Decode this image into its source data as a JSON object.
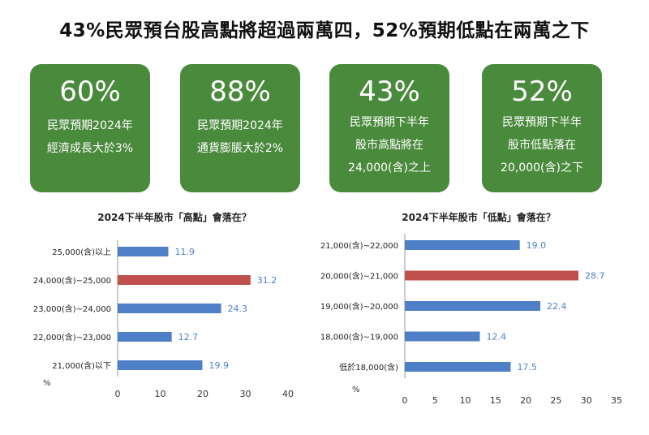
{
  "headline": "43%民眾預台股高點將超過兩萬四，52%預期低點在兩萬之下",
  "cards": [
    {
      "value": "60%",
      "lines": [
        "民眾預期2024年",
        "經濟成長大於3%"
      ]
    },
    {
      "value": "88%",
      "lines": [
        "民眾預期2024年",
        "通貨膨脹大於2%"
      ]
    },
    {
      "value": "43%",
      "lines": [
        "民眾預期下半年",
        "股市高點將在",
        "24,000(含)之上"
      ]
    },
    {
      "value": "52%",
      "lines": [
        "民眾預期下半年",
        "股市低點落在",
        "20,000(含)之下"
      ]
    }
  ],
  "colors": {
    "card": "#4a8a3c",
    "bar": "#4f7fc7",
    "highlight": "#c0504d",
    "label": "#4f7fc7"
  },
  "chart_data": [
    {
      "type": "bar",
      "orientation": "horizontal",
      "title": "2024下半年股市「高點」會落在？",
      "unit_label": "%",
      "categories": [
        "25,000(含)以上",
        "24,000(含)~25,000",
        "23,000(含)~24,000",
        "22,000(含)~23,000",
        "21,000(含)以下"
      ],
      "values": [
        11.9,
        31.2,
        24.3,
        12.7,
        19.9
      ],
      "value_labels": [
        "11.9",
        "31.2",
        "24.3",
        "12.7",
        "19.9"
      ],
      "highlight_index": 1,
      "xlim": [
        0,
        40
      ],
      "xticks": [
        "0",
        "10",
        "20",
        "30",
        "40"
      ]
    },
    {
      "type": "bar",
      "orientation": "horizontal",
      "title": "2024下半年股市「低點」會落在？",
      "unit_label": "%",
      "categories": [
        "21,000(含)~22,000",
        "20,000(含)~21,000",
        "19,000(含)~20,000",
        "18,000(含)~19,000",
        "低於18,000(含)"
      ],
      "values": [
        19.0,
        28.7,
        22.4,
        12.4,
        17.5
      ],
      "value_labels": [
        "19.0",
        "28.7",
        "22.4",
        "12.4",
        "17.5"
      ],
      "highlight_index": 1,
      "xlim": [
        0,
        35
      ],
      "xticks": [
        "0",
        "5",
        "10",
        "15",
        "20",
        "25",
        "30",
        "35"
      ]
    }
  ]
}
